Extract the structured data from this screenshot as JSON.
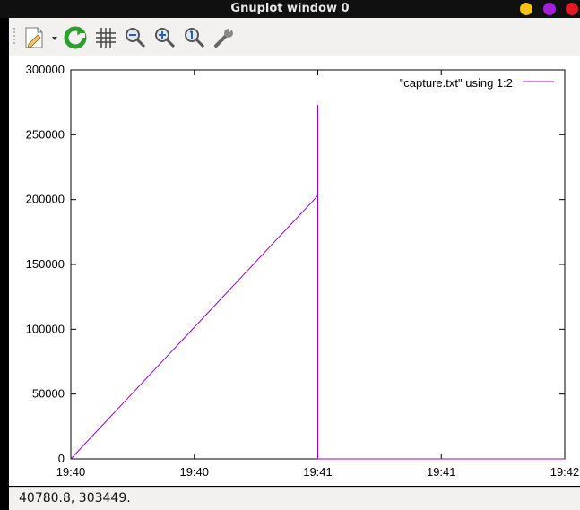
{
  "window": {
    "title": "Gnuplot window 0",
    "buttons": {
      "minimize_color": "#f5c211",
      "maximize_color": "#a51fd6",
      "close_color": "#e01b24"
    }
  },
  "toolbar": {
    "items": [
      {
        "icon": "export-icon",
        "menu": true
      },
      {
        "icon": "replot-icon"
      },
      {
        "icon": "grid-icon"
      },
      {
        "icon": "zoom-previous-icon"
      },
      {
        "icon": "zoom-next-icon"
      },
      {
        "icon": "zoom-autoscale-icon"
      },
      {
        "icon": "options-icon"
      }
    ]
  },
  "status": {
    "coordinates": "40780.8,  303449."
  },
  "chart_data": {
    "type": "line",
    "title": "",
    "xlabel": "",
    "ylabel": "",
    "x_ticks": [
      "19:40",
      "19:40",
      "19:41",
      "19:41",
      "19:42"
    ],
    "y_ticks": [
      "0",
      "50000",
      "100000",
      "150000",
      "200000",
      "250000",
      "300000"
    ],
    "ylim": [
      0,
      300000
    ],
    "grid": false,
    "legend_position": "top-right",
    "line_color": "#9400d3",
    "series": [
      {
        "name": "\"capture.txt\" using 1:2",
        "points": [
          [
            0,
            0
          ],
          [
            2,
            203000
          ],
          [
            2,
            273000
          ],
          [
            2,
            20000
          ],
          [
            2,
            0
          ],
          [
            4,
            0
          ]
        ]
      }
    ]
  }
}
